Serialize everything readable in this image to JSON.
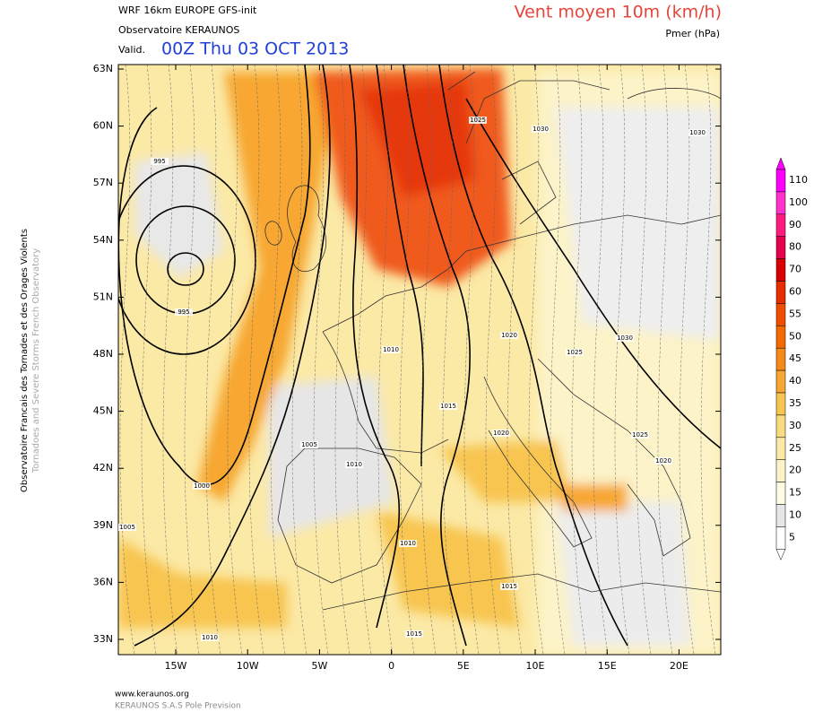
{
  "header": {
    "model": "WRF 16km EUROPE  GFS-init",
    "source": "Observatoire KERAUNOS",
    "valid_prefix": "Valid.",
    "valid_time": "00Z Thu 03 OCT 2013",
    "title": "Vent moyen 10m (km/h)",
    "subtitle": "Pmer (hPa)"
  },
  "side": {
    "line1": "Observatoire Francais des Tornades et des Orages Violents",
    "line2": "Tornadoes and Severe Storms French Observatory"
  },
  "map": {
    "lat_ticks": [
      "63N",
      "60N",
      "57N",
      "54N",
      "51N",
      "48N",
      "45N",
      "42N",
      "39N",
      "36N",
      "33N"
    ],
    "lon_ticks": [
      "15W",
      "10W",
      "5W",
      "0",
      "5E",
      "10E",
      "15E",
      "20E"
    ],
    "isobar_labels": [
      995,
      995,
      1000,
      1005,
      1005,
      1010,
      1010,
      1010,
      1010,
      1015,
      1015,
      1015,
      1020,
      1020,
      1020,
      1025,
      1025,
      1025,
      1030,
      1030,
      1030
    ]
  },
  "colorbar": {
    "levels": [
      110,
      100,
      90,
      80,
      70,
      60,
      55,
      50,
      45,
      40,
      35,
      30,
      25,
      20,
      15,
      10,
      5
    ],
    "colors": [
      "#ff00ff",
      "#ff33cc",
      "#ff1a80",
      "#e6004d",
      "#d90000",
      "#e62e00",
      "#f04d00",
      "#f56a00",
      "#f58a1a",
      "#f7a733",
      "#f8c550",
      "#fadc80",
      "#fbe9a6",
      "#fcf3c8",
      "#fdfbe3",
      "#e6e6e6",
      "#ffffff"
    ]
  },
  "footer": {
    "url": "www.keraunos.org",
    "company": "KERAUNOS S.A.S Pole Prevision"
  }
}
